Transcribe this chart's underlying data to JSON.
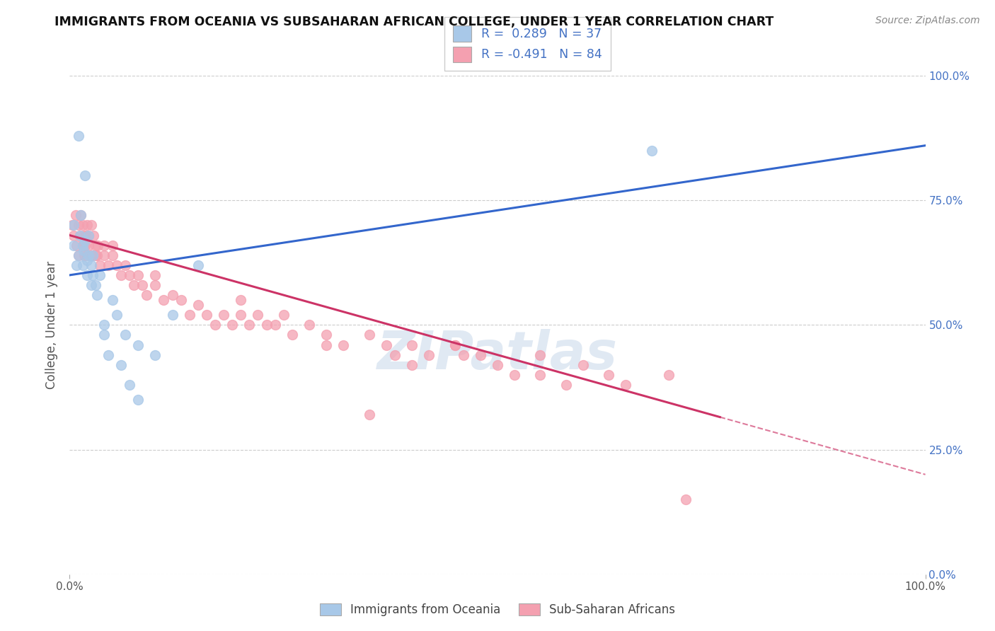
{
  "title": "IMMIGRANTS FROM OCEANIA VS SUBSAHARAN AFRICAN COLLEGE, UNDER 1 YEAR CORRELATION CHART",
  "source": "Source: ZipAtlas.com",
  "ylabel": "College, Under 1 year",
  "xlim": [
    0.0,
    1.0
  ],
  "ylim": [
    0.0,
    1.0
  ],
  "ytick_labels": [
    "0.0%",
    "25.0%",
    "50.0%",
    "75.0%",
    "100.0%"
  ],
  "ytick_positions": [
    0.0,
    0.25,
    0.5,
    0.75,
    1.0
  ],
  "legend_entry1": "R =  0.289   N = 37",
  "legend_entry2": "R = -0.491   N = 84",
  "series1_color": "#a8c8e8",
  "series2_color": "#f4a0b0",
  "trendline1_color": "#3366cc",
  "trendline2_color": "#cc3366",
  "watermark": "ZIPatlas",
  "legend_label1": "Immigrants from Oceania",
  "legend_label2": "Sub-Saharan Africans",
  "trendline1_x0": 0.0,
  "trendline1_y0": 0.6,
  "trendline1_x1": 1.0,
  "trendline1_y1": 0.86,
  "trendline2_x0": 0.0,
  "trendline2_y0": 0.68,
  "trendline2_x1": 1.0,
  "trendline2_y1": 0.2,
  "trendline2_solid_end": 0.76,
  "scatter1_x": [
    0.005,
    0.005,
    0.008,
    0.01,
    0.01,
    0.012,
    0.013,
    0.015,
    0.015,
    0.016,
    0.018,
    0.018,
    0.02,
    0.02,
    0.022,
    0.022,
    0.025,
    0.025,
    0.027,
    0.027,
    0.03,
    0.032,
    0.035,
    0.04,
    0.04,
    0.045,
    0.05,
    0.055,
    0.06,
    0.065,
    0.07,
    0.08,
    0.1,
    0.12,
    0.15,
    0.68,
    0.08
  ],
  "scatter1_y": [
    0.66,
    0.7,
    0.62,
    0.88,
    0.64,
    0.68,
    0.72,
    0.66,
    0.62,
    0.65,
    0.67,
    0.8,
    0.63,
    0.6,
    0.64,
    0.68,
    0.62,
    0.58,
    0.6,
    0.64,
    0.58,
    0.56,
    0.6,
    0.5,
    0.48,
    0.44,
    0.55,
    0.52,
    0.42,
    0.48,
    0.38,
    0.46,
    0.44,
    0.52,
    0.62,
    0.85,
    0.35
  ],
  "scatter2_x": [
    0.003,
    0.005,
    0.007,
    0.008,
    0.01,
    0.01,
    0.012,
    0.013,
    0.015,
    0.015,
    0.016,
    0.017,
    0.018,
    0.019,
    0.02,
    0.02,
    0.022,
    0.022,
    0.025,
    0.025,
    0.027,
    0.028,
    0.03,
    0.03,
    0.032,
    0.033,
    0.035,
    0.04,
    0.04,
    0.045,
    0.05,
    0.05,
    0.055,
    0.06,
    0.065,
    0.07,
    0.075,
    0.08,
    0.085,
    0.09,
    0.1,
    0.1,
    0.11,
    0.12,
    0.13,
    0.14,
    0.15,
    0.16,
    0.17,
    0.18,
    0.19,
    0.2,
    0.21,
    0.22,
    0.23,
    0.24,
    0.26,
    0.28,
    0.3,
    0.32,
    0.35,
    0.37,
    0.38,
    0.4,
    0.42,
    0.45,
    0.46,
    0.48,
    0.5,
    0.52,
    0.55,
    0.58,
    0.6,
    0.63,
    0.65,
    0.4,
    0.25,
    0.3,
    0.45,
    0.55,
    0.2,
    0.35,
    0.7,
    0.72
  ],
  "scatter2_y": [
    0.7,
    0.68,
    0.72,
    0.66,
    0.64,
    0.7,
    0.68,
    0.72,
    0.66,
    0.7,
    0.68,
    0.64,
    0.66,
    0.68,
    0.64,
    0.7,
    0.66,
    0.68,
    0.64,
    0.7,
    0.64,
    0.68,
    0.64,
    0.66,
    0.64,
    0.66,
    0.62,
    0.64,
    0.66,
    0.62,
    0.64,
    0.66,
    0.62,
    0.6,
    0.62,
    0.6,
    0.58,
    0.6,
    0.58,
    0.56,
    0.58,
    0.6,
    0.55,
    0.56,
    0.55,
    0.52,
    0.54,
    0.52,
    0.5,
    0.52,
    0.5,
    0.52,
    0.5,
    0.52,
    0.5,
    0.5,
    0.48,
    0.5,
    0.48,
    0.46,
    0.48,
    0.46,
    0.44,
    0.46,
    0.44,
    0.46,
    0.44,
    0.44,
    0.42,
    0.4,
    0.4,
    0.38,
    0.42,
    0.4,
    0.38,
    0.42,
    0.52,
    0.46,
    0.46,
    0.44,
    0.55,
    0.32,
    0.4,
    0.15
  ]
}
